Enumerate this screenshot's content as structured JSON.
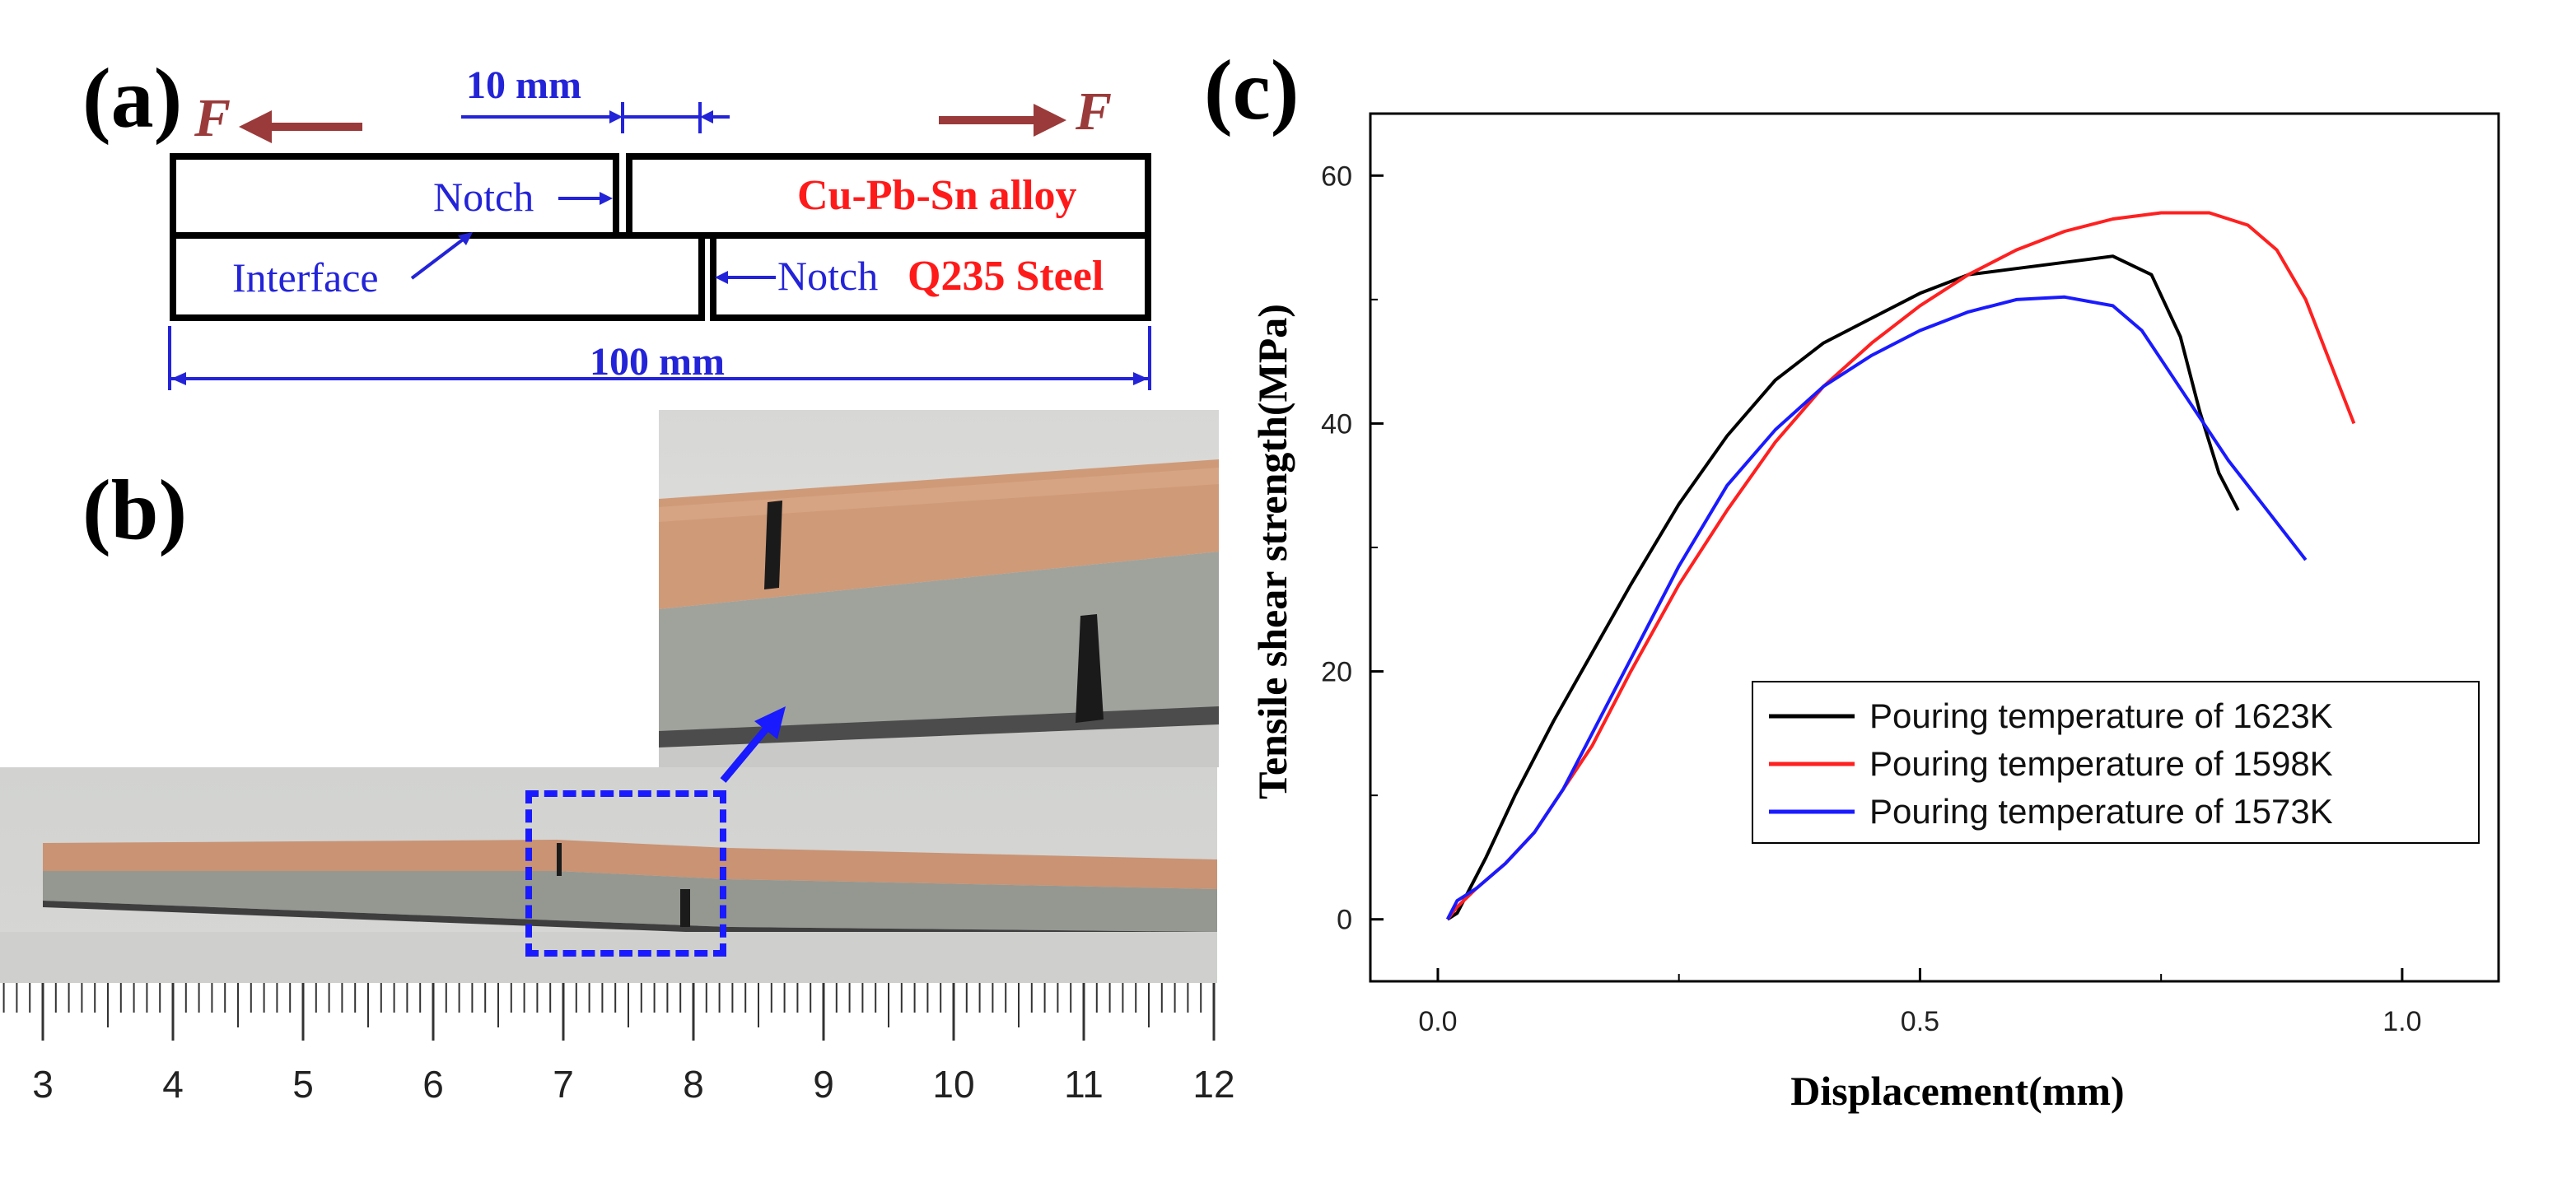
{
  "panels": {
    "a": "(a)",
    "b": "(b)",
    "c": "(c)"
  },
  "schematic": {
    "force_symbol": "F",
    "notch_width_label": "10 mm",
    "length_label": "100 mm",
    "notch_upper_label": "Notch",
    "notch_lower_label": "Notch",
    "interface_label": "Interface",
    "upper_material": "Cu-Pb-Sn alloy",
    "lower_material": "Q235 Steel"
  },
  "photo": {
    "ruler_ticks": [
      "3",
      "4",
      "5",
      "6",
      "7",
      "8",
      "9",
      "10",
      "11",
      "12"
    ]
  },
  "colors": {
    "label_blue": "#2323d8",
    "material_red": "#ff1a1a",
    "force_arrow": "#9b3a3a",
    "series_1623": "#000000",
    "series_1598": "#ff2020",
    "series_1573": "#1a1aff"
  },
  "chart_data": {
    "type": "line",
    "title": "",
    "xlabel": "Displacement(mm)",
    "ylabel": "Tensile shear strength(MPa)",
    "xlim": [
      -0.07,
      1.1
    ],
    "ylim": [
      -5,
      65
    ],
    "xticks": [
      0.0,
      0.5,
      1.0
    ],
    "xtick_labels": [
      "0.0",
      "0.5",
      "1.0"
    ],
    "yticks": [
      0,
      20,
      40,
      60
    ],
    "ytick_labels": [
      "0",
      "20",
      "40",
      "60"
    ],
    "legend_position": "lower-right",
    "series": [
      {
        "name": "Pouring temperature of 1623K",
        "color": "#000000",
        "x": [
          0.01,
          0.02,
          0.03,
          0.05,
          0.08,
          0.12,
          0.16,
          0.2,
          0.25,
          0.3,
          0.35,
          0.4,
          0.45,
          0.5,
          0.55,
          0.6,
          0.65,
          0.7,
          0.74,
          0.77,
          0.79,
          0.81,
          0.83
        ],
        "y": [
          0,
          0.5,
          2,
          5,
          10,
          16,
          21.5,
          27,
          33.5,
          39,
          43.5,
          46.5,
          48.5,
          50.5,
          52,
          52.5,
          53,
          53.5,
          52,
          47,
          41,
          36,
          33
        ]
      },
      {
        "name": "Pouring temperature of 1598K",
        "color": "#ff2020",
        "x": [
          0.01,
          0.02,
          0.04,
          0.07,
          0.1,
          0.13,
          0.16,
          0.2,
          0.25,
          0.3,
          0.35,
          0.4,
          0.45,
          0.5,
          0.55,
          0.6,
          0.65,
          0.7,
          0.75,
          0.8,
          0.84,
          0.87,
          0.9,
          0.92,
          0.94,
          0.95
        ],
        "y": [
          0,
          1,
          2.5,
          4.5,
          7,
          10.5,
          14,
          20,
          27,
          33,
          38.5,
          43,
          46.5,
          49.5,
          52,
          54,
          55.5,
          56.5,
          57,
          57,
          56,
          54,
          50,
          46,
          42,
          40
        ]
      },
      {
        "name": "Pouring temperature of 1573K",
        "color": "#1a1aff",
        "x": [
          0.01,
          0.02,
          0.04,
          0.07,
          0.1,
          0.13,
          0.16,
          0.2,
          0.25,
          0.3,
          0.35,
          0.4,
          0.45,
          0.5,
          0.55,
          0.6,
          0.65,
          0.7,
          0.73,
          0.76,
          0.79,
          0.82,
          0.86,
          0.9
        ],
        "y": [
          0,
          1.5,
          2.5,
          4.5,
          7,
          10.5,
          15,
          21,
          28.5,
          35,
          39.5,
          43,
          45.5,
          47.5,
          49,
          50,
          50.2,
          49.5,
          47.5,
          44,
          40.5,
          37,
          33,
          29
        ]
      }
    ]
  }
}
